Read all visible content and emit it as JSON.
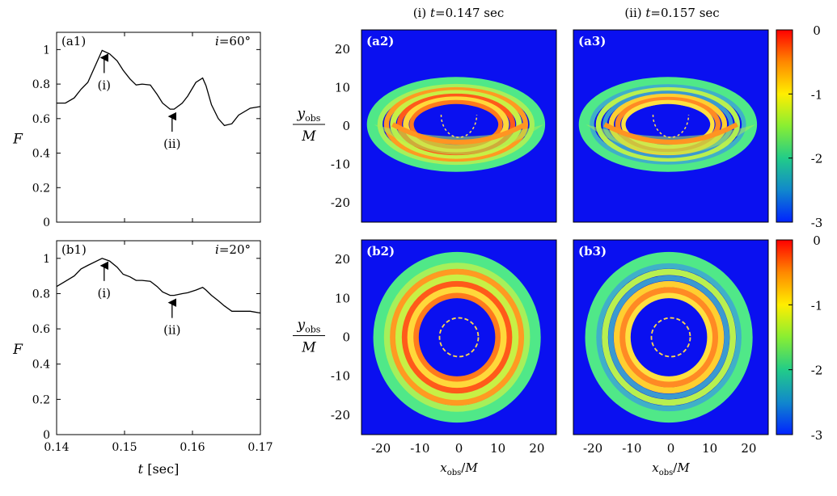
{
  "figure": {
    "column_titles": [
      "(i) t=0.147 sec",
      "(ii) t=0.157 sec"
    ],
    "colorbar": {
      "ticks": [
        "0",
        "-1",
        "-2",
        "-3"
      ],
      "colors": [
        "#ff0000",
        "#ff8800",
        "#ffee00",
        "#88ee33",
        "#22cc88",
        "#1188cc",
        "#0022ff"
      ]
    },
    "image_panels": [
      {
        "label": "(a2)",
        "inclination_deg": 60,
        "time": "0.147 sec"
      },
      {
        "label": "(a3)",
        "inclination_deg": 60,
        "time": "0.157 sec"
      },
      {
        "label": "(b2)",
        "inclination_deg": 20,
        "time": "0.147 sec"
      },
      {
        "label": "(b3)",
        "inclination_deg": 20,
        "time": "0.157 sec"
      }
    ],
    "image_axes": {
      "xlabel": "x_obs/M",
      "ylabel_num": "y_obs",
      "ylabel_den": "M",
      "xticks": [
        "-20",
        "-10",
        "0",
        "10",
        "20"
      ],
      "yticks": [
        "20",
        "10",
        "0",
        "-10",
        "-20"
      ],
      "range": [
        -25,
        25
      ]
    },
    "background_color": "#0a10f0"
  },
  "chart_data": [
    {
      "type": "line",
      "panel_label": "(a1)",
      "annotation": "i=60°",
      "xlabel": "t [sec]",
      "ylabel": "F",
      "xlim": [
        0.14,
        0.17
      ],
      "ylim": [
        0,
        1.1
      ],
      "xticks": [
        "0.14",
        "0.15",
        "0.16",
        "0.17"
      ],
      "yticks": [
        "0",
        "0.2",
        "0.4",
        "0.6",
        "0.8",
        "1"
      ],
      "x": [
        0.14,
        0.1413,
        0.1426,
        0.1436,
        0.1446,
        0.1467,
        0.1478,
        0.1489,
        0.1498,
        0.1508,
        0.1517,
        0.1526,
        0.1538,
        0.1548,
        0.1556,
        0.1567,
        0.1573,
        0.1585,
        0.1593,
        0.1605,
        0.1615,
        0.162,
        0.1628,
        0.1638,
        0.1647,
        0.1658,
        0.1668,
        0.1685,
        0.17
      ],
      "y": [
        0.69,
        0.69,
        0.72,
        0.77,
        0.81,
        0.995,
        0.975,
        0.935,
        0.88,
        0.83,
        0.795,
        0.8,
        0.795,
        0.74,
        0.69,
        0.655,
        0.655,
        0.69,
        0.73,
        0.81,
        0.835,
        0.79,
        0.68,
        0.6,
        0.56,
        0.57,
        0.62,
        0.66,
        0.67
      ],
      "arrows": [
        {
          "label": "(i)",
          "x": 0.147,
          "y": 0.995
        },
        {
          "label": "(ii)",
          "x": 0.157,
          "y": 0.655
        }
      ]
    },
    {
      "type": "line",
      "panel_label": "(b1)",
      "annotation": "i=20°",
      "xlabel": "t [sec]",
      "ylabel": "F",
      "xlim": [
        0.14,
        0.17
      ],
      "ylim": [
        0,
        1.1
      ],
      "xticks": [
        "0.14",
        "0.15",
        "0.16",
        "0.17"
      ],
      "yticks": [
        "0",
        "0.2",
        "0.4",
        "0.6",
        "0.8",
        "1"
      ],
      "x": [
        0.14,
        0.1413,
        0.1426,
        0.1436,
        0.1446,
        0.1467,
        0.1478,
        0.1489,
        0.1498,
        0.1508,
        0.1517,
        0.1526,
        0.1538,
        0.1548,
        0.1556,
        0.1567,
        0.1573,
        0.1585,
        0.1593,
        0.1605,
        0.1615,
        0.162,
        0.1628,
        0.1638,
        0.1647,
        0.1658,
        0.1668,
        0.1685,
        0.17
      ],
      "y": [
        0.84,
        0.87,
        0.9,
        0.94,
        0.96,
        1.0,
        0.985,
        0.95,
        0.91,
        0.895,
        0.875,
        0.875,
        0.87,
        0.84,
        0.81,
        0.79,
        0.79,
        0.8,
        0.805,
        0.82,
        0.835,
        0.82,
        0.79,
        0.76,
        0.73,
        0.7,
        0.7,
        0.7,
        0.69
      ],
      "arrows": [
        {
          "label": "(i)",
          "x": 0.147,
          "y": 1.0
        },
        {
          "label": "(ii)",
          "x": 0.157,
          "y": 0.79
        }
      ]
    }
  ]
}
